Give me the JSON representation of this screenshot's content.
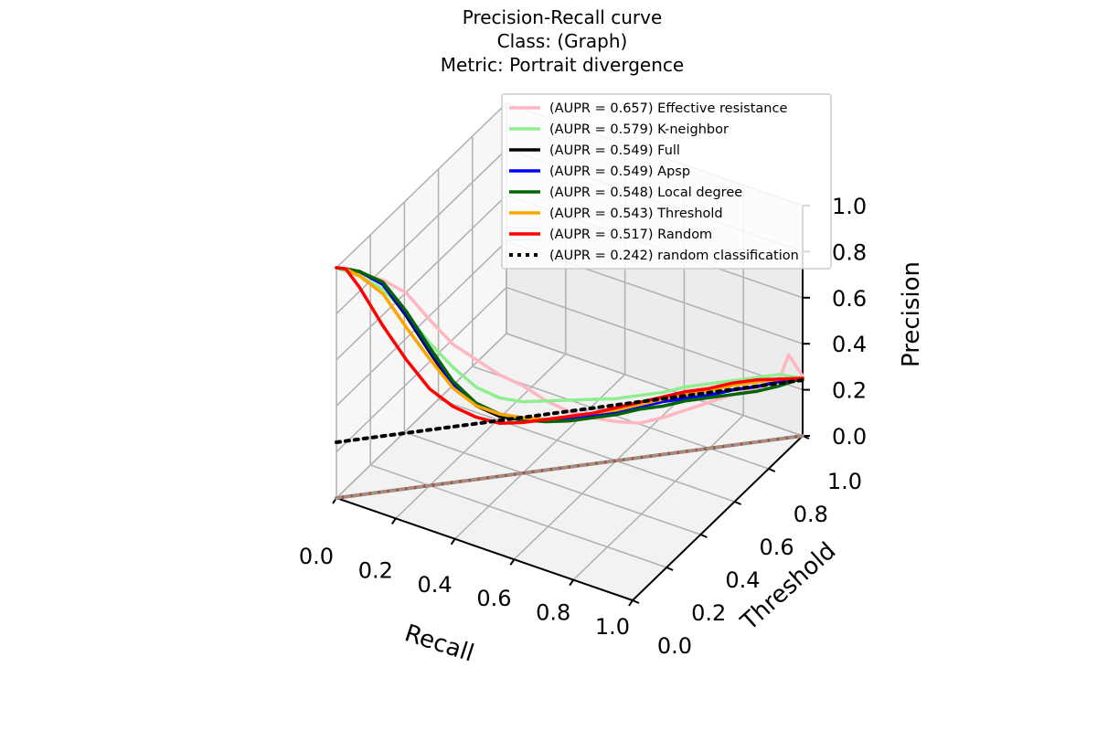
{
  "chart_data": {
    "type": "line",
    "title_lines": [
      "Precision-Recall curve",
      "Class: (Graph)",
      "Metric: Portrait divergence"
    ],
    "xlabel": "Recall",
    "ylabel": "Threshold",
    "zlabel": "Precision",
    "x_ticks": [
      "0.0",
      "0.2",
      "0.4",
      "0.6",
      "0.8",
      "1.0"
    ],
    "y_ticks": [
      "0.0",
      "0.2",
      "0.4",
      "0.6",
      "0.8",
      "1.0"
    ],
    "z_ticks": [
      "0.0",
      "0.2",
      "0.4",
      "0.6",
      "0.8",
      "1.0"
    ],
    "xlim": [
      0,
      1
    ],
    "ylim": [
      0,
      1
    ],
    "zlim": [
      0,
      1
    ],
    "grid": true,
    "legend_position": "top-right",
    "series": [
      {
        "name": "(AUPR = 0.657) Effective resistance",
        "color": "#ffb6c1",
        "style": "solid",
        "recall": [
          0.0,
          0.02,
          0.05,
          0.1,
          0.15,
          0.2,
          0.25,
          0.3,
          0.35,
          0.4,
          0.45,
          0.5,
          0.55,
          0.6,
          0.65,
          0.7,
          0.75,
          0.8,
          0.85,
          0.9,
          0.95,
          0.97,
          1.0
        ],
        "threshold": [
          0.0,
          0.02,
          0.05,
          0.1,
          0.15,
          0.2,
          0.25,
          0.3,
          0.35,
          0.4,
          0.45,
          0.5,
          0.55,
          0.6,
          0.65,
          0.7,
          0.75,
          0.8,
          0.85,
          0.9,
          0.95,
          0.97,
          1.0
        ],
        "precision": [
          1.0,
          0.98,
          0.96,
          0.92,
          0.85,
          0.72,
          0.6,
          0.52,
          0.44,
          0.38,
          0.3,
          0.24,
          0.2,
          0.17,
          0.15,
          0.16,
          0.18,
          0.2,
          0.22,
          0.23,
          0.26,
          0.36,
          0.26
        ]
      },
      {
        "name": "(AUPR = 0.579) K-neighbor",
        "color": "#90ee90",
        "style": "solid",
        "recall": [
          0.0,
          0.02,
          0.05,
          0.1,
          0.15,
          0.2,
          0.25,
          0.3,
          0.35,
          0.4,
          0.45,
          0.5,
          0.55,
          0.6,
          0.65,
          0.7,
          0.75,
          0.8,
          0.85,
          0.9,
          0.95,
          1.0
        ],
        "threshold": [
          0.0,
          0.02,
          0.05,
          0.1,
          0.15,
          0.2,
          0.25,
          0.3,
          0.35,
          0.4,
          0.45,
          0.5,
          0.55,
          0.6,
          0.65,
          0.7,
          0.75,
          0.8,
          0.85,
          0.9,
          0.95,
          1.0
        ],
        "precision": [
          1.0,
          0.98,
          0.95,
          0.88,
          0.76,
          0.62,
          0.5,
          0.4,
          0.34,
          0.31,
          0.3,
          0.29,
          0.28,
          0.27,
          0.27,
          0.27,
          0.28,
          0.28,
          0.28,
          0.28,
          0.28,
          0.25
        ]
      },
      {
        "name": "(AUPR = 0.549) Full",
        "color": "#000000",
        "style": "solid",
        "recall": [
          0.0,
          0.02,
          0.05,
          0.1,
          0.15,
          0.2,
          0.25,
          0.3,
          0.35,
          0.4,
          0.45,
          0.5,
          0.55,
          0.6,
          0.65,
          0.7,
          0.75,
          0.8,
          0.85,
          0.9,
          0.95,
          1.0
        ],
        "threshold": [
          0.0,
          0.02,
          0.05,
          0.1,
          0.15,
          0.2,
          0.25,
          0.3,
          0.35,
          0.4,
          0.45,
          0.5,
          0.55,
          0.6,
          0.65,
          0.7,
          0.75,
          0.8,
          0.85,
          0.9,
          0.95,
          1.0
        ],
        "precision": [
          1.0,
          0.99,
          0.97,
          0.9,
          0.75,
          0.58,
          0.42,
          0.32,
          0.26,
          0.23,
          0.22,
          0.21,
          0.21,
          0.21,
          0.22,
          0.23,
          0.23,
          0.23,
          0.24,
          0.24,
          0.25,
          0.25
        ]
      },
      {
        "name": "(AUPR = 0.549) Apsp",
        "color": "#0000ff",
        "style": "solid",
        "recall": [
          0.0,
          0.02,
          0.05,
          0.1,
          0.15,
          0.2,
          0.25,
          0.3,
          0.35,
          0.4,
          0.45,
          0.5,
          0.55,
          0.6,
          0.65,
          0.7,
          0.75,
          0.8,
          0.85,
          0.9,
          0.95,
          1.0
        ],
        "threshold": [
          0.0,
          0.02,
          0.05,
          0.1,
          0.15,
          0.2,
          0.25,
          0.3,
          0.35,
          0.4,
          0.45,
          0.5,
          0.55,
          0.6,
          0.65,
          0.7,
          0.75,
          0.8,
          0.85,
          0.9,
          0.95,
          1.0
        ],
        "precision": [
          1.0,
          0.99,
          0.97,
          0.9,
          0.76,
          0.59,
          0.43,
          0.33,
          0.27,
          0.24,
          0.22,
          0.21,
          0.21,
          0.21,
          0.22,
          0.23,
          0.23,
          0.23,
          0.24,
          0.24,
          0.25,
          0.25
        ]
      },
      {
        "name": "(AUPR = 0.548) Local degree",
        "color": "#006400",
        "style": "solid",
        "recall": [
          0.0,
          0.02,
          0.05,
          0.1,
          0.15,
          0.2,
          0.25,
          0.3,
          0.35,
          0.4,
          0.45,
          0.5,
          0.55,
          0.6,
          0.65,
          0.7,
          0.75,
          0.8,
          0.85,
          0.9,
          0.95,
          1.0
        ],
        "threshold": [
          0.0,
          0.02,
          0.05,
          0.1,
          0.15,
          0.2,
          0.25,
          0.3,
          0.35,
          0.4,
          0.45,
          0.5,
          0.55,
          0.6,
          0.65,
          0.7,
          0.75,
          0.8,
          0.85,
          0.9,
          0.95,
          1.0
        ],
        "precision": [
          1.0,
          0.99,
          0.97,
          0.91,
          0.77,
          0.6,
          0.44,
          0.33,
          0.27,
          0.23,
          0.21,
          0.2,
          0.2,
          0.2,
          0.21,
          0.21,
          0.22,
          0.22,
          0.22,
          0.22,
          0.23,
          0.25
        ]
      },
      {
        "name": "(AUPR = 0.543) Threshold",
        "color": "#ffa500",
        "style": "solid",
        "recall": [
          0.0,
          0.02,
          0.05,
          0.1,
          0.15,
          0.2,
          0.25,
          0.3,
          0.35,
          0.4,
          0.45,
          0.5,
          0.55,
          0.6,
          0.65,
          0.7,
          0.75,
          0.8,
          0.85,
          0.9,
          0.95,
          1.0
        ],
        "threshold": [
          0.0,
          0.02,
          0.05,
          0.1,
          0.15,
          0.2,
          0.25,
          0.3,
          0.35,
          0.4,
          0.45,
          0.5,
          0.55,
          0.6,
          0.65,
          0.7,
          0.75,
          0.8,
          0.85,
          0.9,
          0.95,
          1.0
        ],
        "precision": [
          1.0,
          0.99,
          0.95,
          0.86,
          0.7,
          0.55,
          0.41,
          0.32,
          0.27,
          0.24,
          0.22,
          0.22,
          0.22,
          0.22,
          0.23,
          0.24,
          0.25,
          0.25,
          0.26,
          0.26,
          0.26,
          0.25
        ]
      },
      {
        "name": "(AUPR = 0.517) Random",
        "color": "#ff0000",
        "style": "solid",
        "recall": [
          0.0,
          0.02,
          0.05,
          0.1,
          0.15,
          0.2,
          0.25,
          0.3,
          0.35,
          0.4,
          0.45,
          0.5,
          0.55,
          0.6,
          0.65,
          0.7,
          0.75,
          0.8,
          0.85,
          0.9,
          0.95,
          1.0
        ],
        "threshold": [
          0.0,
          0.02,
          0.05,
          0.1,
          0.15,
          0.2,
          0.25,
          0.3,
          0.35,
          0.4,
          0.45,
          0.5,
          0.55,
          0.6,
          0.65,
          0.7,
          0.75,
          0.8,
          0.85,
          0.9,
          0.95,
          1.0
        ],
        "precision": [
          1.0,
          0.99,
          0.9,
          0.72,
          0.56,
          0.42,
          0.33,
          0.27,
          0.23,
          0.22,
          0.22,
          0.22,
          0.22,
          0.23,
          0.24,
          0.25,
          0.26,
          0.26,
          0.27,
          0.27,
          0.26,
          0.25
        ]
      },
      {
        "name": "(AUPR = 0.242) random classification",
        "color": "#000000",
        "style": "dotted",
        "recall": [
          0.0,
          1.0
        ],
        "threshold": [
          0.0,
          1.0
        ],
        "precision": [
          0.242,
          0.242
        ]
      }
    ]
  }
}
